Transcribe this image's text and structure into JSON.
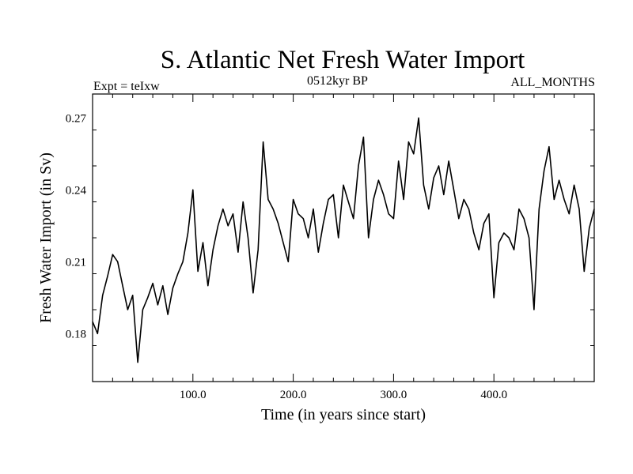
{
  "chart_data": {
    "type": "line",
    "title": "S. Atlantic Net Fresh Water Import",
    "subtitle_left": "Expt = teIxw",
    "subtitle_center": "0512kyr BP",
    "subtitle_right": "ALL_MONTHS",
    "xlabel": "Time (in years since start)",
    "ylabel": "Fresh Water Import (in Sv)",
    "xlim": [
      0,
      500
    ],
    "ylim": [
      0.16,
      0.28
    ],
    "x_ticks": [
      100.0,
      200.0,
      300.0,
      400.0
    ],
    "x_tick_labels": [
      "100.0",
      "200.0",
      "300.0",
      "400.0"
    ],
    "y_ticks": [
      0.18,
      0.21,
      0.24,
      0.27
    ],
    "y_tick_labels": [
      "0.18",
      "0.21",
      "0.24",
      "0.27"
    ],
    "grid": false,
    "line_color": "#000000",
    "series": [
      {
        "x": [
          0,
          5,
          10,
          15,
          20,
          25,
          30,
          35,
          40,
          45,
          50,
          55,
          60,
          65,
          70,
          75,
          80,
          85,
          90,
          95,
          100,
          105,
          110,
          115,
          120,
          125,
          130,
          135,
          140,
          145,
          150,
          155,
          160,
          165,
          170,
          175,
          180,
          185,
          190,
          195,
          200,
          205,
          210,
          215,
          220,
          225,
          230,
          235,
          240,
          245,
          250,
          255,
          260,
          265,
          270,
          275,
          280,
          285,
          290,
          295,
          300,
          305,
          310,
          315,
          320,
          325,
          330,
          335,
          340,
          345,
          350,
          355,
          360,
          365,
          370,
          375,
          380,
          385,
          390,
          395,
          400,
          405,
          410,
          415,
          420,
          425,
          430,
          435,
          440,
          445,
          450,
          455,
          460,
          465,
          470,
          475,
          480,
          485,
          490,
          495,
          500
        ],
        "values": [
          0.185,
          0.18,
          0.196,
          0.204,
          0.213,
          0.21,
          0.2,
          0.19,
          0.196,
          0.168,
          0.19,
          0.195,
          0.201,
          0.192,
          0.2,
          0.188,
          0.199,
          0.205,
          0.21,
          0.222,
          0.24,
          0.206,
          0.218,
          0.2,
          0.215,
          0.225,
          0.232,
          0.225,
          0.23,
          0.214,
          0.235,
          0.22,
          0.197,
          0.215,
          0.26,
          0.236,
          0.232,
          0.226,
          0.218,
          0.21,
          0.236,
          0.23,
          0.228,
          0.22,
          0.232,
          0.214,
          0.226,
          0.236,
          0.238,
          0.22,
          0.242,
          0.235,
          0.228,
          0.25,
          0.262,
          0.22,
          0.236,
          0.244,
          0.238,
          0.23,
          0.228,
          0.252,
          0.236,
          0.26,
          0.255,
          0.27,
          0.242,
          0.232,
          0.245,
          0.25,
          0.238,
          0.252,
          0.24,
          0.228,
          0.236,
          0.232,
          0.222,
          0.215,
          0.226,
          0.23,
          0.195,
          0.218,
          0.222,
          0.22,
          0.215,
          0.232,
          0.228,
          0.22,
          0.19,
          0.232,
          0.248,
          0.258,
          0.236,
          0.244,
          0.236,
          0.23,
          0.242,
          0.232,
          0.206,
          0.224,
          0.232
        ]
      }
    ]
  }
}
